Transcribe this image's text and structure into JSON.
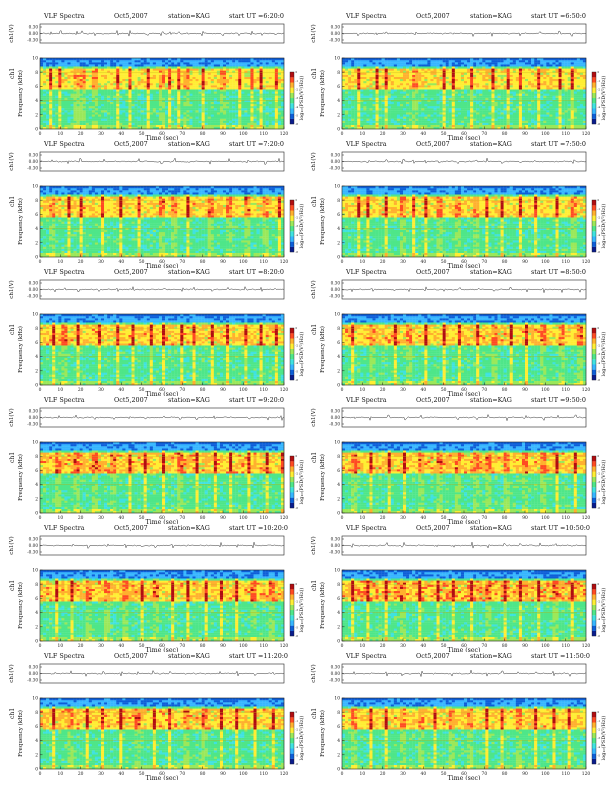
{
  "chart_data": [
    {
      "type": "heatmap",
      "title": "VLF Spectra",
      "date": "Oct5,2007",
      "station": "station=KAG",
      "start": "start  UT =6:20:0",
      "top_ylabel": "ch1(V)",
      "top_yticks": [
        "0.30",
        "0.00",
        "-0.30"
      ],
      "ylabel_ch": "ch1",
      "ylabel": "Frequency (kHz)",
      "yticks": [
        "0",
        "2",
        "4",
        "6",
        "8",
        "10"
      ],
      "ylim": [
        0,
        10
      ],
      "xlabel": "Time (sec)",
      "xticks": [
        "0",
        "10",
        "20",
        "30",
        "40",
        "50",
        "60",
        "70",
        "80",
        "90",
        "100",
        "110",
        "120"
      ],
      "xlim": [
        0,
        120
      ],
      "colorbar_label": "log₁₀(PSD(V²/Hz))",
      "noise_band_khz": [
        8.9,
        9.8
      ],
      "activity_band_khz": [
        5.5,
        8.5
      ],
      "intensity": 0.25,
      "spikes_sec": [
        5,
        10,
        18,
        21,
        27,
        38,
        44,
        53,
        60,
        64,
        68,
        72,
        80,
        90,
        98,
        104,
        109,
        116
      ]
    },
    {
      "type": "heatmap",
      "title": "VLF Spectra",
      "date": "Oct5,2007",
      "station": "station=KAG",
      "start": "start  UT =6:50:0",
      "top_ylabel": "ch1(V)",
      "top_yticks": [
        "0.30",
        "0.00",
        "-0.30"
      ],
      "ylabel_ch": "ch1",
      "ylabel": "Frequency (kHz)",
      "yticks": [
        "0",
        "2",
        "4",
        "6",
        "8",
        "10"
      ],
      "ylim": [
        0,
        10
      ],
      "xlabel": "Time (sec)",
      "xticks": [
        "0",
        "10",
        "20",
        "30",
        "40",
        "50",
        "60",
        "70",
        "80",
        "90",
        "100",
        "110",
        "120"
      ],
      "xlim": [
        0,
        120
      ],
      "colorbar_label": "log₁₀(PSD(V²/Hz))",
      "noise_band_khz": [
        8.9,
        9.8
      ],
      "activity_band_khz": [
        5.5,
        8.5
      ],
      "intensity": 0.4,
      "spikes_sec": [
        8,
        17,
        22,
        36,
        50,
        55,
        64,
        74,
        82,
        88,
        97,
        107,
        113
      ]
    },
    {
      "type": "heatmap",
      "title": "VLF Spectra",
      "date": "Oct5,2007",
      "station": "station=KAG",
      "start": "start  UT =7:20:0",
      "top_ylabel": "ch1(V)",
      "top_yticks": [
        "0.30",
        "0.00",
        "-0.30"
      ],
      "ylabel_ch": "ch1",
      "ylabel": "Frequency (kHz)",
      "yticks": [
        "0",
        "2",
        "4",
        "6",
        "8",
        "10"
      ],
      "ylim": [
        0,
        10
      ],
      "xlabel": "Time (sec)",
      "xticks": [
        "0",
        "10",
        "20",
        "30",
        "40",
        "50",
        "60",
        "70",
        "80",
        "90",
        "100",
        "110",
        "120"
      ],
      "xlim": [
        0,
        120
      ],
      "colorbar_label": "log₁₀(PSD(V²/Hz))",
      "noise_band_khz": [
        8.9,
        9.8
      ],
      "activity_band_khz": [
        5.5,
        8.5
      ],
      "intensity": 0.5,
      "spikes_sec": [
        6,
        14,
        20,
        31,
        40,
        49,
        60,
        66,
        73,
        84,
        93,
        102,
        111,
        118
      ]
    },
    {
      "type": "heatmap",
      "title": "VLF Spectra",
      "date": "Oct5,2007",
      "station": "station=KAG",
      "start": "start  UT =7:50:0",
      "top_ylabel": "ch1(V)",
      "top_yticks": [
        "0.30",
        "0.00",
        "-0.30"
      ],
      "ylabel_ch": "ch1",
      "ylabel": "Frequency (kHz)",
      "yticks": [
        "0",
        "2",
        "4",
        "6",
        "8",
        "10"
      ],
      "ylim": [
        0,
        10
      ],
      "xlabel": "Time (sec)",
      "xticks": [
        "0",
        "10",
        "20",
        "30",
        "40",
        "50",
        "60",
        "70",
        "80",
        "90",
        "100",
        "110",
        "120"
      ],
      "xlim": [
        0,
        120
      ],
      "colorbar_label": "log₁₀(PSD(V²/Hz))",
      "noise_band_khz": [
        8.9,
        9.8
      ],
      "activity_band_khz": [
        5.5,
        8.5
      ],
      "intensity": 0.45,
      "spikes_sec": [
        8,
        13,
        22,
        30,
        35,
        41,
        48,
        57,
        66,
        71,
        79,
        88,
        95,
        106,
        114
      ]
    },
    {
      "type": "heatmap",
      "title": "VLF Spectra",
      "date": "Oct5,2007",
      "station": "station=KAG",
      "start": "start  UT =8:20:0",
      "top_ylabel": "ch1(V)",
      "top_yticks": [
        "0.30",
        "0.00",
        "-0.30"
      ],
      "ylabel_ch": "ch1",
      "ylabel": "Frequency (kHz)",
      "yticks": [
        "0",
        "2",
        "4",
        "6",
        "8",
        "10"
      ],
      "ylim": [
        0,
        10
      ],
      "xlabel": "Time (sec)",
      "xticks": [
        "0",
        "10",
        "20",
        "30",
        "40",
        "50",
        "60",
        "70",
        "80",
        "90",
        "100",
        "110",
        "120"
      ],
      "xlim": [
        0,
        120
      ],
      "colorbar_label": "log₁₀(PSD(V²/Hz))",
      "noise_band_khz": [
        8.9,
        9.8
      ],
      "activity_band_khz": [
        5.5,
        8.5
      ],
      "intensity": 0.55,
      "spikes_sec": [
        7,
        12,
        19,
        29,
        38,
        46,
        55,
        61,
        70,
        76,
        85,
        92,
        101,
        109,
        116
      ]
    },
    {
      "type": "heatmap",
      "title": "VLF Spectra",
      "date": "Oct5,2007",
      "station": "station=KAG",
      "start": "start  UT =8:50:0",
      "top_ylabel": "ch1(V)",
      "top_yticks": [
        "0.30",
        "0.00",
        "-0.30"
      ],
      "ylabel_ch": "ch1",
      "ylabel": "Frequency (kHz)",
      "yticks": [
        "0",
        "2",
        "4",
        "6",
        "8",
        "10"
      ],
      "ylim": [
        0,
        10
      ],
      "xlabel": "Time (sec)",
      "xticks": [
        "0",
        "10",
        "20",
        "30",
        "40",
        "50",
        "60",
        "70",
        "80",
        "90",
        "100",
        "110",
        "120"
      ],
      "xlim": [
        0,
        120
      ],
      "colorbar_label": "log₁₀(PSD(V²/Hz))",
      "noise_band_khz": [
        8.9,
        9.8
      ],
      "activity_band_khz": [
        5.5,
        8.5
      ],
      "intensity": 0.55,
      "spikes_sec": [
        5,
        15,
        26,
        33,
        41,
        50,
        58,
        67,
        75,
        83,
        91,
        99,
        108,
        117
      ]
    },
    {
      "type": "heatmap",
      "title": "VLF Spectra",
      "date": "Oct5,2007",
      "station": "station=KAG",
      "start": "start  UT =9:20:0",
      "top_ylabel": "ch1(V)",
      "top_yticks": [
        "0.30",
        "0.00",
        "-0.30"
      ],
      "ylabel_ch": "ch1",
      "ylabel": "Frequency (kHz)",
      "yticks": [
        "0",
        "2",
        "4",
        "6",
        "8",
        "10"
      ],
      "ylim": [
        0,
        10
      ],
      "xlabel": "Time (sec)",
      "xticks": [
        "0",
        "10",
        "20",
        "30",
        "40",
        "50",
        "60",
        "70",
        "80",
        "90",
        "100",
        "110",
        "120"
      ],
      "xlim": [
        0,
        120
      ],
      "colorbar_label": "log₁₀(PSD(V²/Hz))",
      "noise_band_khz": [
        8.9,
        9.8
      ],
      "activity_band_khz": [
        5.5,
        8.5
      ],
      "intensity": 0.65,
      "spikes_sec": [
        9,
        18,
        27,
        36,
        44,
        52,
        61,
        69,
        77,
        86,
        94,
        103,
        112,
        119
      ]
    },
    {
      "type": "heatmap",
      "title": "VLF Spectra",
      "date": "Oct5,2007",
      "station": "station=KAG",
      "start": "start  UT =9:50:0",
      "top_ylabel": "ch1(V)",
      "top_yticks": [
        "0.30",
        "0.00",
        "-0.30"
      ],
      "ylabel_ch": "ch1",
      "ylabel": "Frequency (kHz)",
      "yticks": [
        "0",
        "2",
        "4",
        "6",
        "8",
        "10"
      ],
      "ylim": [
        0,
        10
      ],
      "xlabel": "Time (sec)",
      "xticks": [
        "0",
        "10",
        "20",
        "30",
        "40",
        "50",
        "60",
        "70",
        "80",
        "90",
        "100",
        "110",
        "120"
      ],
      "xlim": [
        0,
        120
      ],
      "colorbar_label": "log₁₀(PSD(V²/Hz))",
      "noise_band_khz": [
        8.9,
        9.8
      ],
      "activity_band_khz": [
        5.5,
        8.5
      ],
      "intensity": 0.6,
      "spikes_sec": [
        6,
        14,
        23,
        31,
        39,
        48,
        57,
        66,
        72,
        81,
        90,
        99,
        106,
        115
      ]
    },
    {
      "type": "heatmap",
      "title": "VLF Spectra",
      "date": "Oct5,2007",
      "station": "station=KAG",
      "start": "start  UT =10:20:0",
      "top_ylabel": "ch1(V)",
      "top_yticks": [
        "0.30",
        "0.00",
        "-0.30"
      ],
      "ylabel_ch": "ch1",
      "ylabel": "Frequency (kHz)",
      "yticks": [
        "0",
        "2",
        "4",
        "6",
        "8",
        "10"
      ],
      "ylim": [
        0,
        10
      ],
      "xlabel": "Time (sec)",
      "xticks": [
        "0",
        "10",
        "20",
        "30",
        "40",
        "50",
        "60",
        "70",
        "80",
        "90",
        "100",
        "110",
        "120"
      ],
      "xlim": [
        0,
        120
      ],
      "colorbar_label": "log₁₀(PSD(V²/Hz))",
      "noise_band_khz": [
        8.9,
        9.8
      ],
      "activity_band_khz": [
        5.5,
        8.5
      ],
      "intensity": 0.6,
      "spikes_sec": [
        8,
        16,
        24,
        33,
        42,
        50,
        57,
        65,
        73,
        82,
        89,
        97,
        105,
        114
      ]
    },
    {
      "type": "heatmap",
      "title": "VLF Spectra",
      "date": "Oct5,2007",
      "station": "station=KAG",
      "start": "start  UT =10:50:0",
      "top_ylabel": "ch1(V)",
      "top_yticks": [
        "0.30",
        "0.00",
        "-0.30"
      ],
      "ylabel_ch": "ch1",
      "ylabel": "Frequency (kHz)",
      "yticks": [
        "0",
        "2",
        "4",
        "6",
        "8",
        "10"
      ],
      "ylim": [
        0,
        10
      ],
      "xlabel": "Time (sec)",
      "xticks": [
        "0",
        "10",
        "20",
        "30",
        "40",
        "50",
        "60",
        "70",
        "80",
        "90",
        "100",
        "110",
        "120"
      ],
      "xlim": [
        0,
        120
      ],
      "colorbar_label": "log₁₀(PSD(V²/Hz))",
      "noise_band_khz": [
        8.9,
        9.8
      ],
      "activity_band_khz": [
        5.5,
        8.5
      ],
      "intensity": 0.8,
      "spikes_sec": [
        5,
        13,
        22,
        30,
        38,
        47,
        55,
        64,
        72,
        80,
        88,
        97,
        105,
        113
      ]
    },
    {
      "type": "heatmap",
      "title": "VLF Spectra",
      "date": "Oct5,2007",
      "station": "station=KAG",
      "start": "start  UT =11:20:0",
      "top_ylabel": "ch1(V)",
      "top_yticks": [
        "0.30",
        "0.00",
        "-0.30"
      ],
      "ylabel_ch": "ch1",
      "ylabel": "Frequency (kHz)",
      "yticks": [
        "0",
        "2",
        "4",
        "6",
        "8",
        "10"
      ],
      "ylim": [
        0,
        10
      ],
      "xlabel": "Time (sec)",
      "xticks": [
        "0",
        "10",
        "20",
        "30",
        "40",
        "50",
        "60",
        "70",
        "80",
        "90",
        "100",
        "110",
        "120"
      ],
      "xlim": [
        0,
        120
      ],
      "colorbar_label": "log₁₀(PSD(V²/Hz))",
      "noise_band_khz": [
        8.9,
        9.8
      ],
      "activity_band_khz": [
        5.5,
        8.5
      ],
      "intensity": 0.6,
      "spikes_sec": [
        7,
        15,
        23,
        31,
        40,
        48,
        56,
        64,
        72,
        81,
        89,
        97,
        106,
        115
      ]
    },
    {
      "type": "heatmap",
      "title": "VLF Spectra",
      "date": "Oct5,2007",
      "station": "station=KAG",
      "start": "start  UT =11:50:0",
      "top_ylabel": "ch1(V)",
      "top_yticks": [
        "0.30",
        "0.00",
        "-0.30"
      ],
      "ylabel_ch": "ch1",
      "ylabel": "Frequency (kHz)",
      "yticks": [
        "0",
        "2",
        "4",
        "6",
        "8",
        "10"
      ],
      "ylim": [
        0,
        10
      ],
      "xlabel": "Time (sec)",
      "xticks": [
        "0",
        "10",
        "20",
        "30",
        "40",
        "50",
        "60",
        "70",
        "80",
        "90",
        "100",
        "110",
        "120"
      ],
      "xlim": [
        0,
        120
      ],
      "colorbar_label": "log₁₀(PSD(V²/Hz))",
      "noise_band_khz": [
        8.9,
        9.8
      ],
      "activity_band_khz": [
        5.5,
        8.5
      ],
      "intensity": 0.5,
      "spikes_sec": [
        6,
        14,
        22,
        30,
        39,
        46,
        54,
        63,
        71,
        79,
        87,
        95,
        104,
        112
      ]
    }
  ],
  "colormap": [
    "#0a1c8c",
    "#0d5ed8",
    "#36b6ff",
    "#3fe2e0",
    "#4ee689",
    "#9be85a",
    "#ffee33",
    "#ffb02e",
    "#ff4a22",
    "#b00d10"
  ],
  "colorbar_ticks": [
    "0",
    "-1",
    "-2",
    "-3",
    "-4",
    "-5",
    "-6"
  ]
}
